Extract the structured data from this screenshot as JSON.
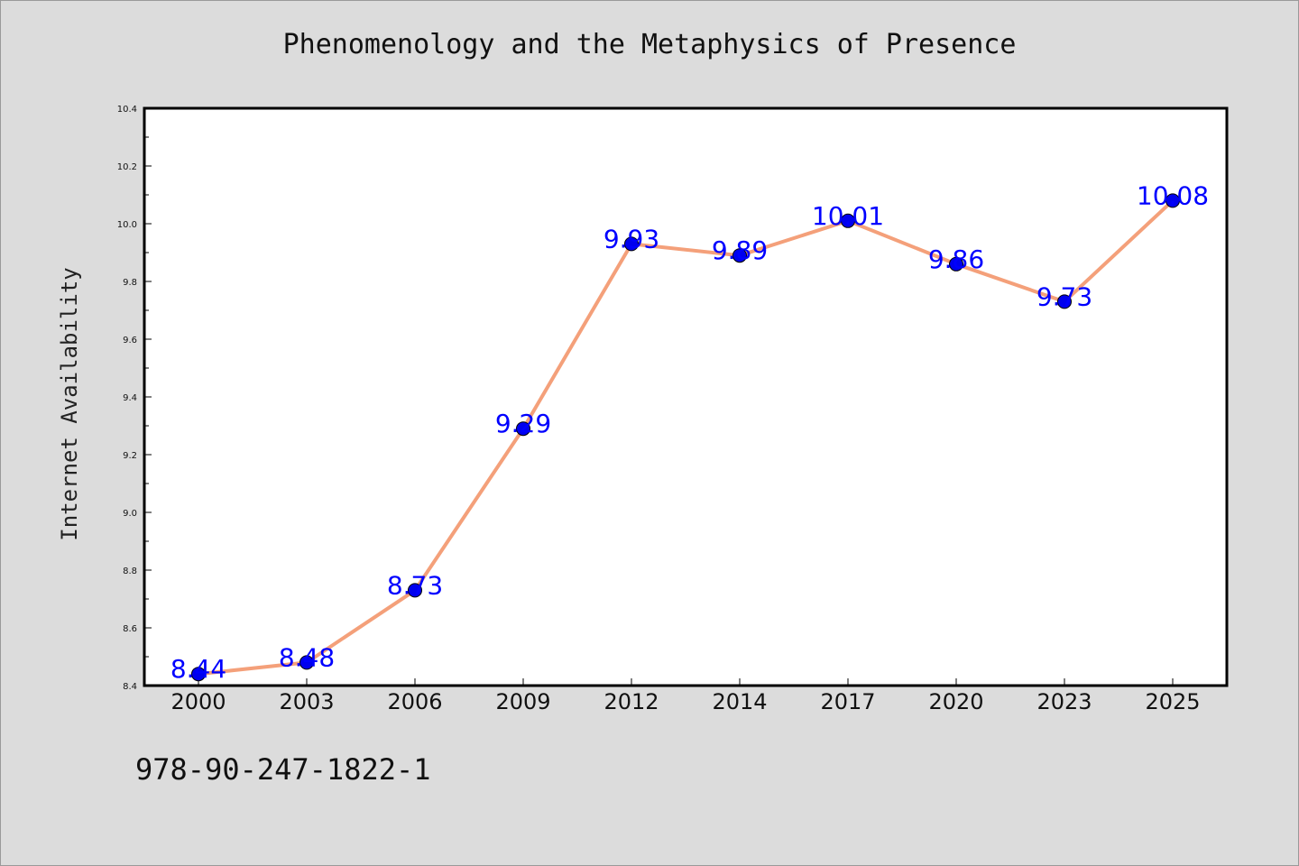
{
  "chart_data": {
    "type": "line",
    "title": "Phenomenology and the Metaphysics of Presence",
    "xlabel": "",
    "ylabel": "Internet Availability",
    "categories": [
      "2000",
      "2003",
      "2006",
      "2009",
      "2012",
      "2014",
      "2017",
      "2020",
      "2023",
      "2025"
    ],
    "series": [
      {
        "values": [
          8.44,
          8.48,
          8.73,
          9.29,
          9.93,
          9.89,
          10.01,
          9.86,
          9.73,
          10.08
        ],
        "labels": [
          "8.44",
          "8.48",
          "8.73",
          "9.29",
          "9.93",
          "9.89",
          "10.01",
          "9.86",
          "9.73",
          "10.08"
        ],
        "line_color": "#f4a07a",
        "marker_color": "#0000ee"
      }
    ],
    "ylim": [
      8.4,
      10.4
    ],
    "yticks": [
      "8.4",
      "8.6",
      "8.8",
      "9.0",
      "9.2",
      "9.4",
      "9.6",
      "9.8",
      "10.0",
      "10.2",
      "10.4"
    ],
    "grid": false,
    "data_label_color": "#0000ff"
  },
  "footer": {
    "code": "978-90-247-1822-1"
  },
  "colors": {
    "background": "#dcdcdc",
    "plot_background": "#ffffff"
  }
}
